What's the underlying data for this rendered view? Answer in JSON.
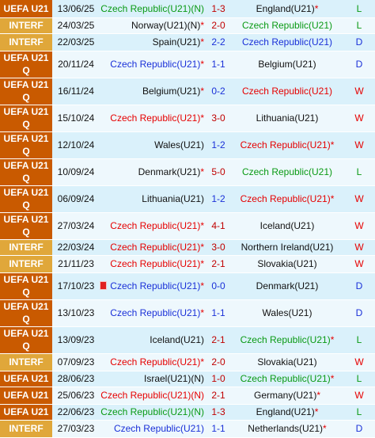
{
  "colors": {
    "uefa_bg": "#c95a00",
    "interf_bg": "#e0a73a",
    "row_a": "#daf1fb",
    "row_b": "#eef8fd",
    "loss_czech": "#e60000",
    "win_czech": "#0a9a14",
    "draw_czech": "#1a30d8",
    "score_red": "#c00000",
    "score_blue": "#1a30d8",
    "result_W": "#e60000",
    "result_D": "#1a30d8",
    "result_L": "#0a9a14"
  },
  "matches": [
    {
      "comp": "UEFA U21",
      "type": "uefa",
      "date": "13/06/25",
      "home": "Czech Republic(U21)(N)",
      "home_star": false,
      "home_color": "#0a9a14",
      "score": "1-3",
      "score_color": "#c00000",
      "away": "England(U21)",
      "away_star": true,
      "away_color": "#111111",
      "result": "L",
      "result_color": "#0a9a14",
      "height": 22
    },
    {
      "comp": "INTERF",
      "type": "interf",
      "date": "24/03/25",
      "home": "Norway(U21)(N)",
      "home_star": true,
      "home_color": "#111111",
      "score": "2-0",
      "score_color": "#c00000",
      "away": "Czech Republic(U21)",
      "away_star": false,
      "away_color": "#0a9a14",
      "result": "L",
      "result_color": "#0a9a14",
      "height": 20
    },
    {
      "comp": "INTERF",
      "type": "interf",
      "date": "22/03/25",
      "home": "Spain(U21)",
      "home_star": true,
      "home_color": "#111111",
      "score": "2-2",
      "score_color": "#1a30d8",
      "away": "Czech Republic(U21)",
      "away_star": false,
      "away_color": "#1a30d8",
      "result": "D",
      "result_color": "#1a30d8",
      "height": 22
    },
    {
      "comp": "UEFA U21 Q",
      "type": "uefa",
      "date": "20/11/24",
      "home": "Czech Republic(U21)",
      "home_star": true,
      "home_color": "#1a30d8",
      "score": "1-1",
      "score_color": "#1a30d8",
      "away": "Belgium(U21)",
      "away_star": false,
      "away_color": "#111111",
      "result": "D",
      "result_color": "#1a30d8",
      "height": 34
    },
    {
      "comp": "UEFA U21 Q",
      "type": "uefa",
      "date": "16/11/24",
      "home": "Belgium(U21)",
      "home_star": true,
      "home_color": "#111111",
      "score": "0-2",
      "score_color": "#1a30d8",
      "away": "Czech Republic(U21)",
      "away_star": false,
      "away_color": "#e60000",
      "result": "W",
      "result_color": "#e60000",
      "height": 34
    },
    {
      "comp": "UEFA U21 Q",
      "type": "uefa",
      "date": "15/10/24",
      "home": "Czech Republic(U21)",
      "home_star": true,
      "home_color": "#e60000",
      "score": "3-0",
      "score_color": "#c00000",
      "away": "Lithuania(U21)",
      "away_star": false,
      "away_color": "#111111",
      "result": "W",
      "result_color": "#e60000",
      "height": 34
    },
    {
      "comp": "UEFA U21 Q",
      "type": "uefa",
      "date": "12/10/24",
      "home": "Wales(U21)",
      "home_star": false,
      "home_color": "#111111",
      "score": "1-2",
      "score_color": "#1a30d8",
      "away": "Czech Republic(U21)",
      "away_star": true,
      "away_color": "#e60000",
      "result": "W",
      "result_color": "#e60000",
      "height": 34
    },
    {
      "comp": "UEFA U21 Q",
      "type": "uefa",
      "date": "10/09/24",
      "home": "Denmark(U21)",
      "home_star": true,
      "home_color": "#111111",
      "score": "5-0",
      "score_color": "#c00000",
      "away": "Czech Republic(U21)",
      "away_star": false,
      "away_color": "#0a9a14",
      "result": "L",
      "result_color": "#0a9a14",
      "height": 34
    },
    {
      "comp": "UEFA U21 Q",
      "type": "uefa",
      "date": "06/09/24",
      "home": "Lithuania(U21)",
      "home_star": false,
      "home_color": "#111111",
      "score": "1-2",
      "score_color": "#1a30d8",
      "away": "Czech Republic(U21)",
      "away_star": true,
      "away_color": "#e60000",
      "result": "W",
      "result_color": "#e60000",
      "height": 34
    },
    {
      "comp": "UEFA U21 Q",
      "type": "uefa",
      "date": "27/03/24",
      "home": "Czech Republic(U21)",
      "home_star": true,
      "home_color": "#e60000",
      "score": "4-1",
      "score_color": "#c00000",
      "away": "Iceland(U21)",
      "away_star": false,
      "away_color": "#111111",
      "result": "W",
      "result_color": "#e60000",
      "height": 34
    },
    {
      "comp": "INTERF",
      "type": "interf",
      "date": "22/03/24",
      "home": "Czech Republic(U21)",
      "home_star": true,
      "home_color": "#e60000",
      "score": "3-0",
      "score_color": "#c00000",
      "away": "Northern Ireland(U21)",
      "away_star": false,
      "away_color": "#111111",
      "result": "W",
      "result_color": "#e60000",
      "height": 20
    },
    {
      "comp": "INTERF",
      "type": "interf",
      "date": "21/11/23",
      "home": "Czech Republic(U21)",
      "home_star": true,
      "home_color": "#e60000",
      "score": "2-1",
      "score_color": "#c00000",
      "away": "Slovakia(U21)",
      "away_star": false,
      "away_color": "#111111",
      "result": "W",
      "result_color": "#e60000",
      "height": 22
    },
    {
      "comp": "UEFA U21 Q",
      "type": "uefa",
      "date": "17/10/23",
      "home": "Czech Republic(U21)",
      "home_star": true,
      "home_color": "#1a30d8",
      "home_flag": true,
      "score": "0-0",
      "score_color": "#1a30d8",
      "away": "Denmark(U21)",
      "away_star": false,
      "away_color": "#111111",
      "result": "D",
      "result_color": "#1a30d8",
      "height": 34
    },
    {
      "comp": "UEFA U21 Q",
      "type": "uefa",
      "date": "13/10/23",
      "home": "Czech Republic(U21)",
      "home_star": true,
      "home_color": "#1a30d8",
      "score": "1-1",
      "score_color": "#1a30d8",
      "away": "Wales(U21)",
      "away_star": false,
      "away_color": "#111111",
      "result": "D",
      "result_color": "#1a30d8",
      "height": 34
    },
    {
      "comp": "UEFA U21 Q",
      "type": "uefa",
      "date": "13/09/23",
      "home": "Iceland(U21)",
      "home_star": false,
      "home_color": "#111111",
      "score": "2-1",
      "score_color": "#c00000",
      "away": "Czech Republic(U21)",
      "away_star": true,
      "away_color": "#0a9a14",
      "result": "L",
      "result_color": "#0a9a14",
      "height": 34
    },
    {
      "comp": "INTERF",
      "type": "interf",
      "date": "07/09/23",
      "home": "Czech Republic(U21)",
      "home_star": true,
      "home_color": "#e60000",
      "score": "2-0",
      "score_color": "#c00000",
      "away": "Slovakia(U21)",
      "away_star": false,
      "away_color": "#111111",
      "result": "W",
      "result_color": "#e60000",
      "height": 22
    },
    {
      "comp": "UEFA U21",
      "type": "uefa",
      "date": "28/06/23",
      "home": "Israel(U21)(N)",
      "home_star": false,
      "home_color": "#111111",
      "score": "1-0",
      "score_color": "#c00000",
      "away": "Czech Republic(U21)",
      "away_star": true,
      "away_color": "#0a9a14",
      "result": "L",
      "result_color": "#0a9a14",
      "height": 20
    },
    {
      "comp": "UEFA U21",
      "type": "uefa",
      "date": "25/06/23",
      "home": "Czech Republic(U21)(N)",
      "home_star": false,
      "home_color": "#e60000",
      "score": "2-1",
      "score_color": "#c00000",
      "away": "Germany(U21)",
      "away_star": true,
      "away_color": "#111111",
      "result": "W",
      "result_color": "#e60000",
      "height": 22
    },
    {
      "comp": "UEFA U21",
      "type": "uefa",
      "date": "22/06/23",
      "home": "Czech Republic(U21)(N)",
      "home_star": false,
      "home_color": "#0a9a14",
      "score": "1-3",
      "score_color": "#c00000",
      "away": "England(U21)",
      "away_star": true,
      "away_color": "#111111",
      "result": "L",
      "result_color": "#0a9a14",
      "height": 20
    },
    {
      "comp": "INTERF",
      "type": "interf",
      "date": "27/03/23",
      "home": "Czech Republic(U21)",
      "home_star": false,
      "home_color": "#1a30d8",
      "score": "1-1",
      "score_color": "#1a30d8",
      "away": "Netherlands(U21)",
      "away_star": true,
      "away_color": "#111111",
      "result": "D",
      "result_color": "#1a30d8",
      "height": 22
    }
  ]
}
